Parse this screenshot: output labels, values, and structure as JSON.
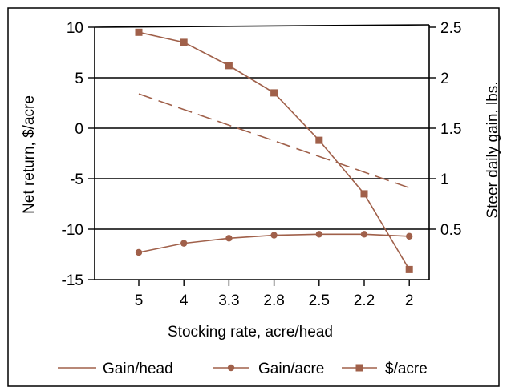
{
  "chart_data": {
    "type": "line",
    "categories": [
      "5",
      "4",
      "3.3",
      "2.8",
      "2.5",
      "2.2",
      "2"
    ],
    "xlabel": "Stocking rate, acre/head",
    "ylabel_left": "Net return, $/acre",
    "ylabel_right": "Steer daily gain, lbs.",
    "y_left": {
      "min": -15,
      "max": 10,
      "ticks": [
        10,
        5,
        0,
        -5,
        -10,
        -15
      ],
      "tick_labels": [
        "10",
        "5",
        "0",
        "-5",
        "-10",
        "-15"
      ]
    },
    "y_right": {
      "min": 0,
      "max": 2.5,
      "ticks": [
        2.5,
        2,
        1.5,
        1,
        0.5
      ],
      "tick_labels": [
        "2.5",
        "2",
        "1.5",
        "1",
        "0.5"
      ]
    },
    "grid": "horizontal",
    "legend_position": "bottom",
    "series": [
      {
        "name": "Gain/head",
        "axis": "right",
        "style": "dashed",
        "marker": "none",
        "color": "#a0604a",
        "values": [
          1.84,
          1.67,
          1.51,
          1.36,
          1.21,
          1.06,
          0.91
        ]
      },
      {
        "name": "Gain/acre",
        "axis": "right",
        "style": "solid",
        "marker": "circle",
        "color": "#a0604a",
        "values": [
          0.27,
          0.36,
          0.41,
          0.44,
          0.45,
          0.45,
          0.43
        ]
      },
      {
        "name": "$/acre",
        "axis": "left",
        "style": "solid",
        "marker": "square",
        "color": "#a0604a",
        "values": [
          9.5,
          8.5,
          6.2,
          3.5,
          -1.2,
          -6.5,
          -14.0
        ]
      }
    ]
  }
}
